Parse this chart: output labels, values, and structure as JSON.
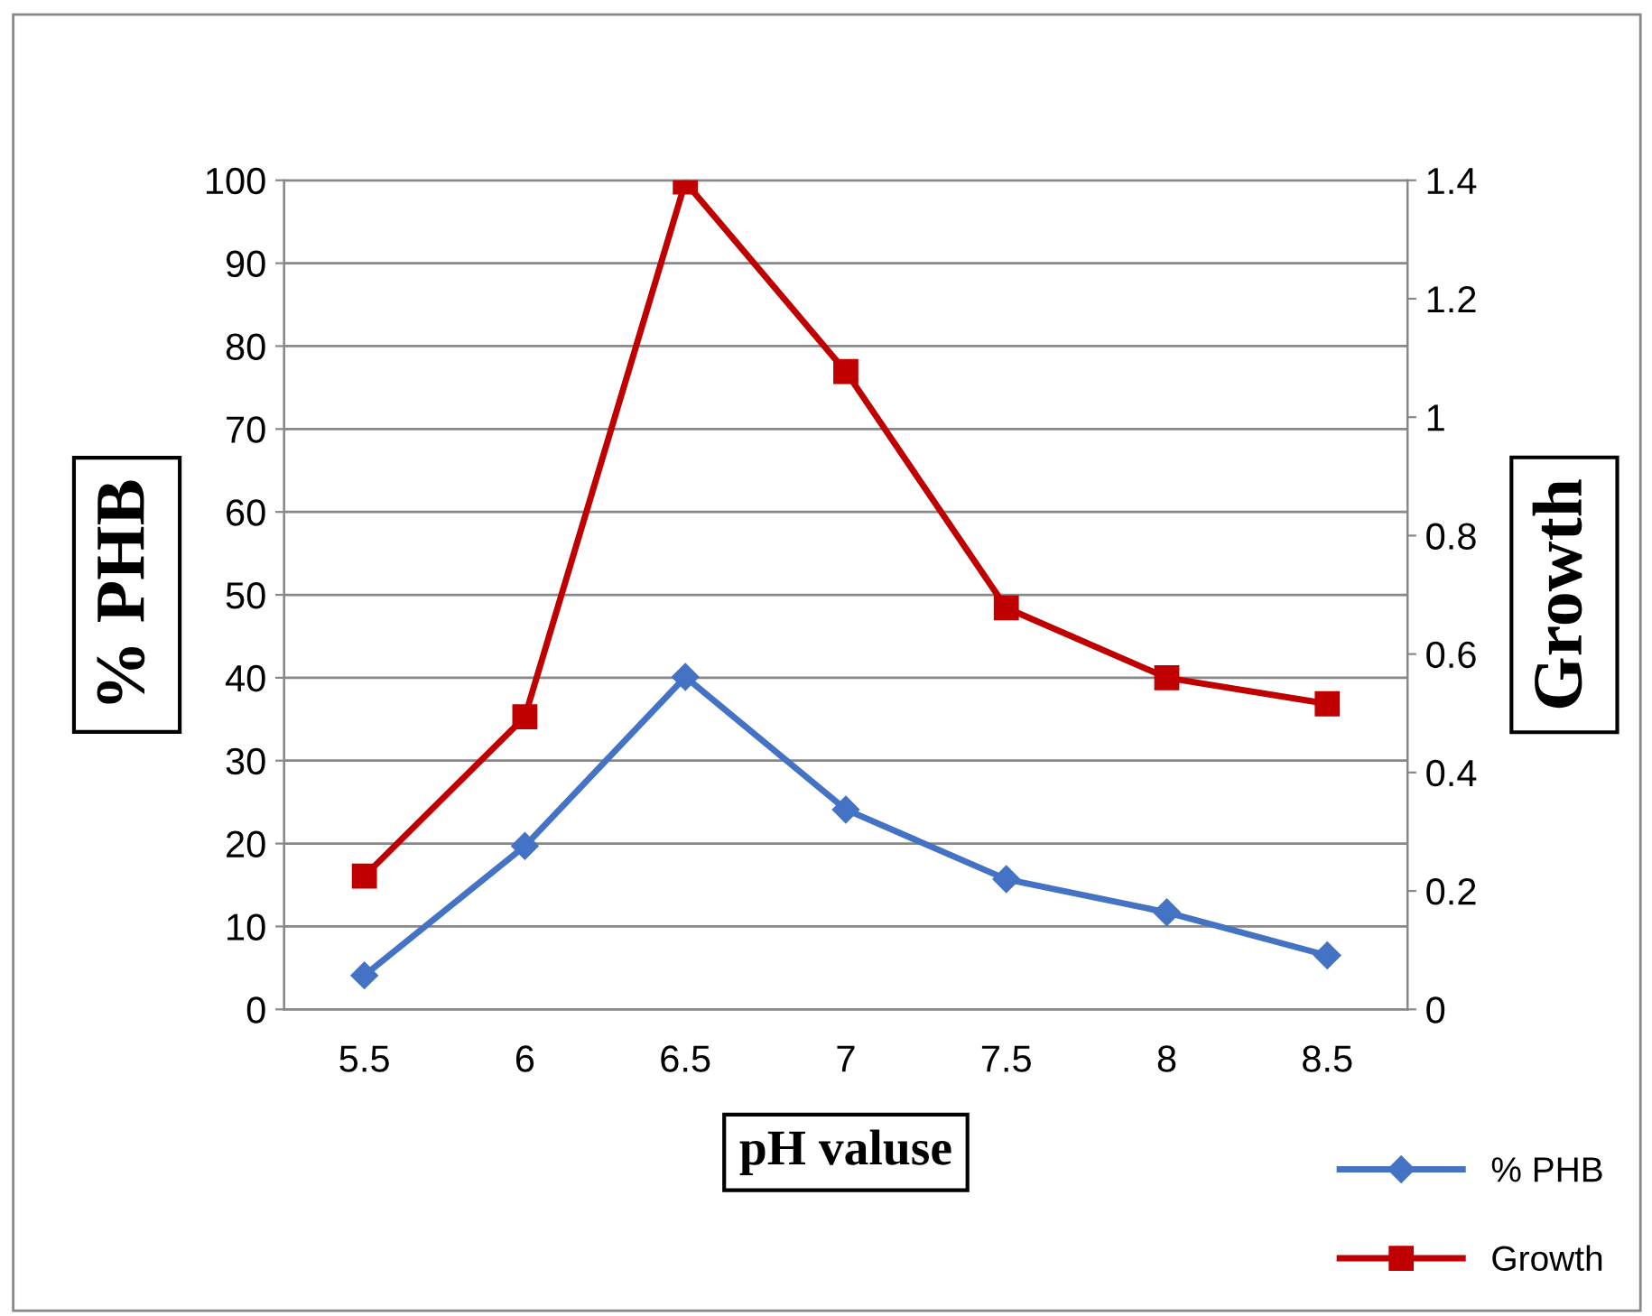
{
  "chart_data": {
    "type": "line",
    "xlabel": "pH valuse",
    "ylabel": "% PHB",
    "y2label": "Growth",
    "categories": [
      "5.5",
      "6",
      "6.5",
      "7",
      "7.5",
      "8",
      "8.5"
    ],
    "series": [
      {
        "name": "% PHB",
        "color": "#4472c4",
        "marker": "diamond",
        "values": [
          4.1,
          19.7,
          40.1,
          24.1,
          15.7,
          11.7,
          6.5
        ]
      },
      {
        "name": "Growth",
        "color": "#c00000",
        "marker": "square",
        "axis": "y2",
        "values": [
          0.225,
          0.494,
          1.397,
          1.077,
          0.678,
          0.56,
          0.516
        ]
      }
    ],
    "ylim": [
      0,
      100
    ],
    "yticks": [
      0,
      10,
      20,
      30,
      40,
      50,
      60,
      70,
      80,
      90,
      100
    ],
    "y2lim": [
      0,
      1.4
    ],
    "y2ticks": [
      0,
      0.2,
      0.4,
      0.6,
      0.8,
      1,
      1.2,
      1.4
    ],
    "grid": "y",
    "legend": "bottom right"
  }
}
